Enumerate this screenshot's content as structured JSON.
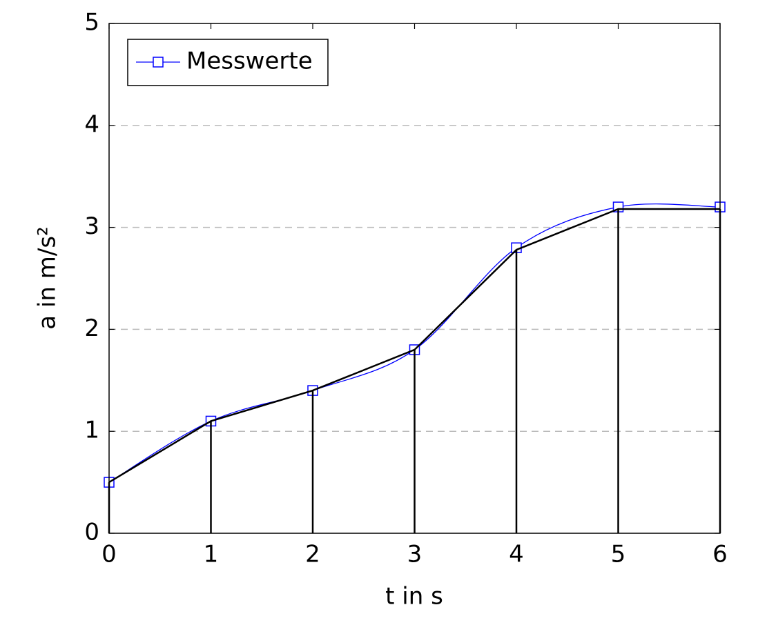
{
  "chart_data": {
    "type": "line",
    "x_label": "t in s",
    "y_label": "a in m/s²",
    "x": [
      0,
      1,
      2,
      3,
      4,
      5,
      6
    ],
    "series": [
      {
        "name": "Messwerte",
        "color": "#0000ff",
        "smooth": true,
        "marker": "square",
        "values": [
          0.5,
          1.1,
          1.4,
          1.8,
          2.8,
          3.2,
          3.2
        ]
      },
      {
        "color": "#000000",
        "stems": true,
        "values": [
          0.5,
          1.1,
          1.4,
          1.8,
          2.78,
          3.18,
          3.18
        ]
      }
    ],
    "xlim": [
      0,
      6
    ],
    "xticks": [
      0,
      1,
      2,
      3,
      4,
      5,
      6
    ],
    "ylim": [
      0,
      5
    ],
    "yticks": [
      0,
      1,
      2,
      3,
      4,
      5
    ],
    "grid": "y",
    "legend": "upper left"
  }
}
